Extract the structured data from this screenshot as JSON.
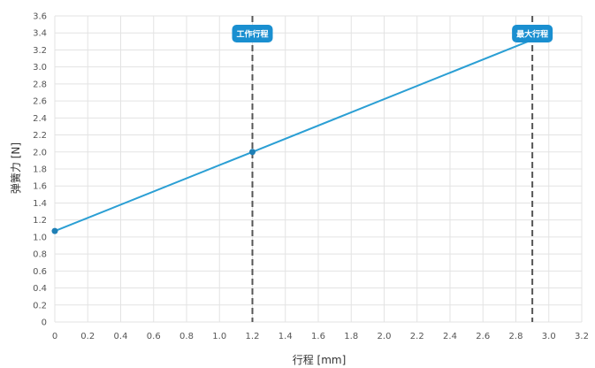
{
  "chart_data": {
    "type": "line",
    "xlabel": "行程 [mm]",
    "ylabel": "弹簧力 [N]",
    "xlim": [
      0,
      3.2
    ],
    "ylim": [
      0,
      3.6
    ],
    "x_ticks": [
      0,
      0.2,
      0.4,
      0.6,
      0.8,
      1.0,
      1.2,
      1.4,
      1.6,
      1.8,
      2.0,
      2.2,
      2.4,
      2.6,
      2.8,
      3.0,
      3.2
    ],
    "x_tick_labels": [
      "0",
      "0.2",
      "0.4",
      "0.6",
      "0.8",
      "1.0",
      "1.2",
      "1.4",
      "1.6",
      "1.8",
      "2.0",
      "2.2",
      "2.4",
      "2.6",
      "2.8",
      "3.0",
      "3.2"
    ],
    "y_ticks": [
      0,
      0.2,
      0.4,
      0.6,
      0.8,
      1.0,
      1.2,
      1.4,
      1.6,
      1.8,
      2.0,
      2.2,
      2.4,
      2.6,
      2.8,
      3.0,
      3.2,
      3.4,
      3.6
    ],
    "y_tick_labels": [
      "0",
      "0.2",
      "0.4",
      "0.6",
      "0.8",
      "1.0",
      "1.2",
      "1.4",
      "1.6",
      "1.8",
      "2.0",
      "2.2",
      "2.4",
      "2.6",
      "2.8",
      "3.0",
      "3.2",
      "3.4",
      "3.6"
    ],
    "grid": true,
    "series": [
      {
        "color": "#2b9fd4",
        "x": [
          0,
          1.2,
          2.9
        ],
        "y": [
          1.07,
          2.0,
          3.32
        ],
        "markers_at": [
          0,
          1
        ]
      }
    ],
    "reference_lines": [
      {
        "x": 1.2,
        "label": "工作行程",
        "color": "#555555",
        "style": "dashed"
      },
      {
        "x": 2.9,
        "label": "最大行程",
        "color": "#555555",
        "style": "dashed"
      }
    ],
    "callout_color": "#1a8fd0"
  }
}
